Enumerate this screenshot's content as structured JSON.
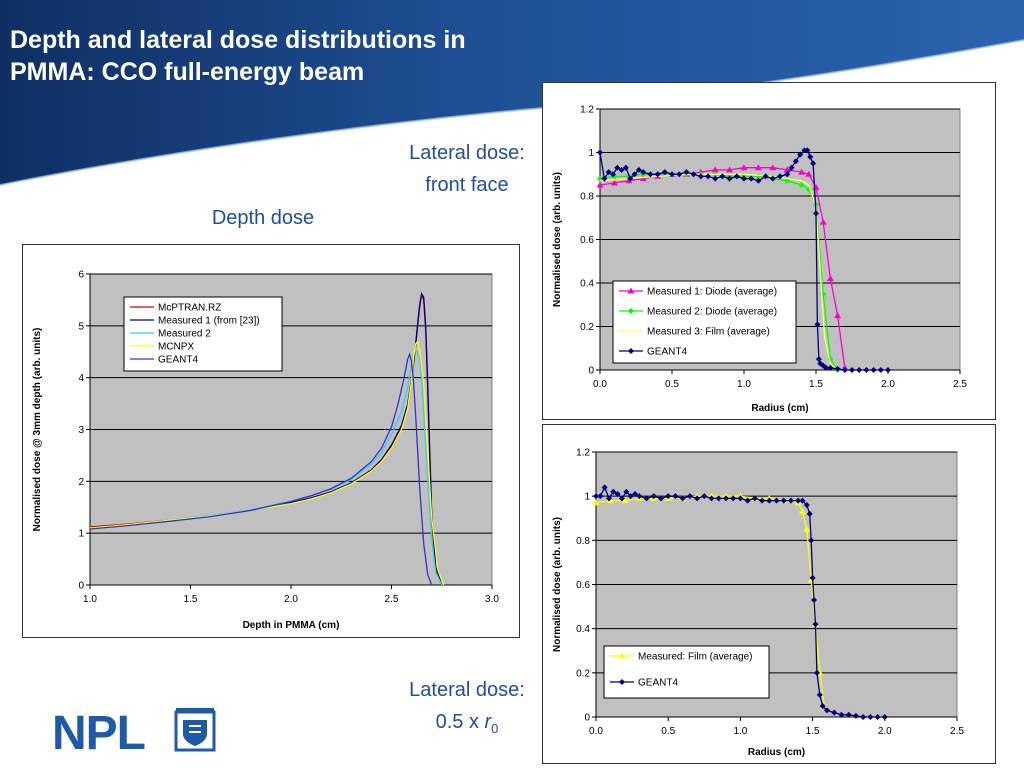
{
  "slide": {
    "title_line1": "Depth and lateral dose distributions in",
    "title_line2": "PMMA:  CCO full-energy beam",
    "label_lateral_front_1": "Lateral dose:",
    "label_lateral_front_2": "front face",
    "label_depth": "Depth dose",
    "label_lateral_half_1": "Lateral dose:",
    "label_lateral_half_2_prefix": "0.5 x ",
    "label_lateral_half_2_r": "r",
    "label_lateral_half_2_sub": "0",
    "logo_text": "NPL",
    "colors": {
      "title_band": "#1a3f7a",
      "label": "#1f4e9c",
      "logo": "#1f5aa8",
      "plot_bg": "#c0c0c0"
    }
  },
  "chart_data": [
    {
      "id": "depth",
      "type": "line",
      "xlabel": "Depth in PMMA (cm)",
      "ylabel": "Normalised dose @ 3mm depth (arb. units)",
      "xlim": [
        1.0,
        3.0
      ],
      "ylim": [
        0,
        6
      ],
      "xticks": [
        "1.0",
        "1.5",
        "2.0",
        "2.5",
        "3.0"
      ],
      "yticks": [
        "0",
        "1",
        "2",
        "3",
        "4",
        "5",
        "6"
      ],
      "grid": true,
      "legend_position": "top-left",
      "series": [
        {
          "name": "McPTRAN.RZ",
          "color": "#cc0000",
          "x": [
            1.0,
            1.2,
            1.4,
            1.6,
            1.8,
            2.0,
            2.1,
            2.2,
            2.3,
            2.4,
            2.45,
            2.5,
            2.55,
            2.58,
            2.6,
            2.62,
            2.64,
            2.65,
            2.66,
            2.67,
            2.68,
            2.69,
            2.7,
            2.72,
            2.75
          ],
          "y": [
            1.12,
            1.18,
            1.25,
            1.33,
            1.44,
            1.58,
            1.67,
            1.79,
            1.96,
            2.22,
            2.41,
            2.68,
            3.05,
            3.45,
            3.95,
            4.6,
            5.35,
            5.6,
            5.5,
            4.9,
            3.8,
            2.5,
            1.3,
            0.3,
            0.0
          ]
        },
        {
          "name": "Measured 1 (from [23])",
          "color": "#000080",
          "x": [
            1.0,
            1.2,
            1.4,
            1.6,
            1.8,
            2.0,
            2.1,
            2.2,
            2.3,
            2.4,
            2.45,
            2.5,
            2.55,
            2.58,
            2.6,
            2.62,
            2.64,
            2.65,
            2.66,
            2.67,
            2.68,
            2.69,
            2.7,
            2.72,
            2.75
          ],
          "y": [
            1.1,
            1.17,
            1.25,
            1.33,
            1.44,
            1.59,
            1.68,
            1.8,
            1.97,
            2.22,
            2.42,
            2.7,
            3.08,
            3.48,
            3.98,
            4.65,
            5.4,
            5.62,
            5.55,
            5.0,
            3.9,
            2.6,
            1.4,
            0.35,
            0.0
          ]
        },
        {
          "name": "Measured 2",
          "color": "#33ccff",
          "x": [
            1.0,
            1.2,
            1.4,
            1.6,
            1.8,
            2.0,
            2.1,
            2.2,
            2.3,
            2.4,
            2.45,
            2.5,
            2.55,
            2.58,
            2.6,
            2.62,
            2.64,
            2.65,
            2.66,
            2.68,
            2.7,
            2.72,
            2.75
          ],
          "y": [
            1.1,
            1.17,
            1.25,
            1.34,
            1.45,
            1.62,
            1.72,
            1.85,
            2.04,
            2.33,
            2.55,
            2.9,
            3.35,
            3.8,
            4.3,
            4.55,
            4.4,
            4.0,
            3.3,
            2.0,
            0.9,
            0.25,
            0.0
          ]
        },
        {
          "name": "MCNPX",
          "color": "#ffff00",
          "x": [
            1.0,
            1.2,
            1.4,
            1.6,
            1.8,
            2.0,
            2.1,
            2.2,
            2.3,
            2.4,
            2.45,
            2.5,
            2.55,
            2.58,
            2.6,
            2.61,
            2.62,
            2.63,
            2.64,
            2.66,
            2.68,
            2.7,
            2.73,
            2.76
          ],
          "y": [
            1.1,
            1.17,
            1.25,
            1.33,
            1.44,
            1.57,
            1.66,
            1.78,
            1.95,
            2.2,
            2.38,
            2.64,
            3.0,
            3.4,
            3.95,
            4.4,
            4.65,
            4.7,
            4.55,
            3.9,
            2.6,
            1.3,
            0.3,
            0.0
          ]
        },
        {
          "name": "GEANT4",
          "color": "#3333cc",
          "x": [
            1.0,
            1.2,
            1.4,
            1.6,
            1.8,
            2.0,
            2.1,
            2.2,
            2.3,
            2.4,
            2.45,
            2.5,
            2.53,
            2.56,
            2.58,
            2.59,
            2.6,
            2.61,
            2.62,
            2.64,
            2.66,
            2.68,
            2.7
          ],
          "y": [
            1.08,
            1.15,
            1.23,
            1.32,
            1.44,
            1.61,
            1.72,
            1.86,
            2.06,
            2.38,
            2.64,
            3.05,
            3.45,
            3.95,
            4.35,
            4.45,
            4.3,
            3.9,
            3.3,
            1.9,
            0.8,
            0.2,
            0.0
          ]
        }
      ]
    },
    {
      "id": "lateral_front",
      "type": "line",
      "xlabel": "Radius (cm)",
      "ylabel": "Normalised dose (arb. units)",
      "xlim": [
        0,
        2.5
      ],
      "ylim": [
        0,
        1.2
      ],
      "xticks": [
        "0.0",
        "0.5",
        "1.0",
        "1.5",
        "2.0",
        "2.5"
      ],
      "yticks": [
        "0",
        "0.2",
        "0.4",
        "0.6",
        "0.8",
        "1",
        "1.2"
      ],
      "grid": true,
      "legend_position": "bottom-left",
      "series": [
        {
          "name": "Measured 1: Diode (average)",
          "color": "#ff00cc",
          "marker": "triangle",
          "x": [
            0.0,
            0.1,
            0.2,
            0.3,
            0.4,
            0.5,
            0.6,
            0.7,
            0.8,
            0.9,
            1.0,
            1.1,
            1.2,
            1.3,
            1.4,
            1.45,
            1.5,
            1.55,
            1.6,
            1.65,
            1.7
          ],
          "y": [
            0.85,
            0.86,
            0.87,
            0.88,
            0.89,
            0.9,
            0.9,
            0.91,
            0.92,
            0.92,
            0.93,
            0.93,
            0.93,
            0.92,
            0.91,
            0.9,
            0.84,
            0.68,
            0.42,
            0.25,
            0.01
          ]
        },
        {
          "name": "Measured 2: Diode (average)",
          "color": "#00ff00",
          "marker": "diamond",
          "x": [
            0.0,
            0.1,
            0.2,
            0.3,
            0.4,
            0.5,
            0.6,
            0.7,
            0.8,
            0.9,
            1.0,
            1.1,
            1.2,
            1.3,
            1.4,
            1.45,
            1.5,
            1.55,
            1.6,
            1.65
          ],
          "y": [
            0.88,
            0.89,
            0.89,
            0.9,
            0.9,
            0.9,
            0.9,
            0.9,
            0.9,
            0.89,
            0.89,
            0.89,
            0.88,
            0.87,
            0.85,
            0.83,
            0.76,
            0.35,
            0.05,
            0.0
          ]
        },
        {
          "name": "Measured 3: Film (average)",
          "color": "#ffff66",
          "marker": "none",
          "x": [
            0.0,
            0.2,
            0.4,
            0.6,
            0.8,
            1.0,
            1.2,
            1.3,
            1.4,
            1.45,
            1.5,
            1.53,
            1.56,
            1.6,
            1.65
          ],
          "y": [
            0.87,
            0.88,
            0.89,
            0.9,
            0.9,
            0.9,
            0.89,
            0.88,
            0.87,
            0.85,
            0.75,
            0.45,
            0.15,
            0.03,
            0.0
          ]
        },
        {
          "name": "GEANT4",
          "color": "#000080",
          "marker": "diamond",
          "x": [
            0.0,
            0.03,
            0.06,
            0.09,
            0.12,
            0.15,
            0.18,
            0.21,
            0.24,
            0.27,
            0.3,
            0.35,
            0.4,
            0.45,
            0.5,
            0.55,
            0.6,
            0.65,
            0.7,
            0.75,
            0.8,
            0.85,
            0.9,
            0.95,
            1.0,
            1.05,
            1.1,
            1.15,
            1.2,
            1.25,
            1.3,
            1.33,
            1.36,
            1.39,
            1.42,
            1.44,
            1.46,
            1.48,
            1.5,
            1.51,
            1.52,
            1.53,
            1.55,
            1.57,
            1.6,
            1.65,
            1.7,
            1.75,
            1.8,
            1.85,
            1.9,
            1.95,
            2.0
          ],
          "y": [
            1.0,
            0.88,
            0.91,
            0.9,
            0.93,
            0.92,
            0.93,
            0.88,
            0.9,
            0.92,
            0.91,
            0.9,
            0.9,
            0.91,
            0.9,
            0.9,
            0.91,
            0.9,
            0.89,
            0.89,
            0.88,
            0.89,
            0.88,
            0.89,
            0.88,
            0.88,
            0.87,
            0.89,
            0.88,
            0.89,
            0.9,
            0.93,
            0.96,
            0.99,
            1.01,
            1.01,
            0.98,
            0.95,
            0.72,
            0.21,
            0.05,
            0.03,
            0.02,
            0.01,
            0.01,
            0.005,
            0.0,
            0.0,
            0.0,
            0.0,
            0.0,
            0.0,
            0.0
          ]
        }
      ]
    },
    {
      "id": "lateral_half",
      "type": "line",
      "xlabel": "Radius (cm)",
      "ylabel": "Normalised dose (arb. units)",
      "xlim": [
        0,
        2.5
      ],
      "ylim": [
        0,
        1.2
      ],
      "xticks": [
        "0.0",
        "0.5",
        "1.0",
        "1.5",
        "2.0",
        "2.5"
      ],
      "yticks": [
        "0",
        "0.2",
        "0.4",
        "0.6",
        "0.8",
        "1",
        "1.2"
      ],
      "grid": true,
      "legend_position": "bottom-left",
      "series": [
        {
          "name": "Measured: Film (average)",
          "color": "#ffff00",
          "marker": "triangle",
          "x": [
            0.0,
            0.1,
            0.2,
            0.3,
            0.4,
            0.5,
            0.6,
            0.7,
            0.8,
            0.9,
            1.0,
            1.1,
            1.2,
            1.3,
            1.4,
            1.43,
            1.46,
            1.49,
            1.52,
            1.55,
            1.58
          ],
          "y": [
            0.97,
            0.98,
            0.98,
            0.99,
            0.99,
            0.99,
            0.99,
            1.0,
            1.0,
            1.0,
            1.0,
            0.99,
            0.99,
            0.98,
            0.97,
            0.93,
            0.85,
            0.62,
            0.42,
            0.2,
            0.05
          ]
        },
        {
          "name": "GEANT4",
          "color": "#000080",
          "marker": "diamond",
          "x": [
            0.0,
            0.03,
            0.06,
            0.09,
            0.12,
            0.15,
            0.18,
            0.21,
            0.24,
            0.27,
            0.3,
            0.35,
            0.4,
            0.45,
            0.5,
            0.55,
            0.6,
            0.65,
            0.7,
            0.75,
            0.8,
            0.85,
            0.9,
            0.95,
            1.0,
            1.05,
            1.1,
            1.15,
            1.2,
            1.25,
            1.3,
            1.35,
            1.4,
            1.43,
            1.46,
            1.48,
            1.49,
            1.5,
            1.51,
            1.52,
            1.53,
            1.55,
            1.57,
            1.6,
            1.65,
            1.7,
            1.75,
            1.8,
            1.85,
            1.9,
            1.95,
            2.0
          ],
          "y": [
            1.0,
            1.0,
            1.04,
            0.99,
            1.02,
            1.01,
            0.99,
            1.02,
            1.0,
            1.01,
            1.0,
            0.99,
            1.0,
            0.99,
            1.0,
            1.0,
            0.99,
            1.0,
            0.99,
            1.0,
            0.99,
            0.99,
            0.99,
            0.99,
            0.99,
            0.98,
            0.99,
            0.98,
            0.98,
            0.98,
            0.98,
            0.98,
            0.98,
            0.98,
            0.96,
            0.92,
            0.8,
            0.63,
            0.53,
            0.42,
            0.2,
            0.1,
            0.05,
            0.03,
            0.02,
            0.01,
            0.01,
            0.005,
            0.0,
            0.0,
            0.0,
            0.0
          ]
        }
      ]
    }
  ]
}
